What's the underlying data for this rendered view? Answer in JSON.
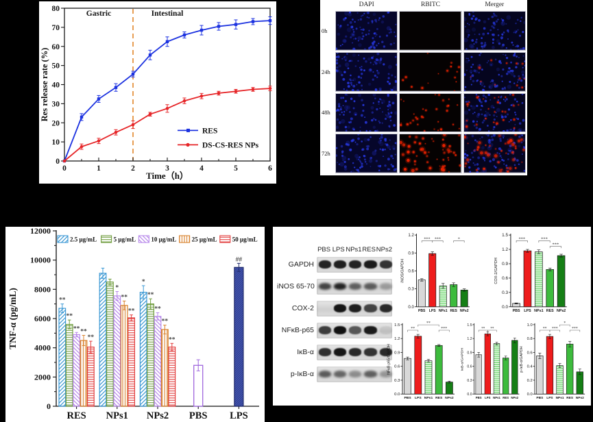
{
  "panels": {
    "microscopy": {
      "column_headers": [
        "DAPI",
        "RBITC",
        "Merger"
      ],
      "row_labels": [
        "0h",
        "24h",
        "48h",
        "72h"
      ],
      "dapi_bg": "#06062a",
      "rbitc_bg": "#050202",
      "merger_bg": "#05051f",
      "dapi_dot_color": "#2a3cf0",
      "rbitc_dot_color": "#e62100",
      "blue_dot_count": 85,
      "red_dot_counts_rbitc": [
        0,
        15,
        32,
        52
      ],
      "red_dot_counts_merger": [
        0,
        12,
        26,
        42
      ]
    },
    "blot": {
      "lane_headers": [
        "PBS",
        "LPS",
        "NPs1",
        "RES",
        "NPs2"
      ],
      "lane_colors": [
        "#d8d8d8",
        "#ee1c1c",
        "#8ce08c",
        "#3dbb3d",
        "#157f15"
      ],
      "rows": [
        {
          "label": "GAPDH",
          "bands": [
            0.88,
            0.9,
            0.88,
            0.92,
            0.8
          ]
        },
        {
          "label": "iNOS 65-70",
          "bands": [
            0.72,
            0.88,
            0.58,
            0.6,
            0.28
          ]
        },
        {
          "label": "COX-2",
          "bands": [
            0.02,
            0.95,
            0.9,
            0.72,
            0.85
          ]
        },
        {
          "label": "NFκB-p65",
          "bands": [
            0.75,
            0.97,
            0.62,
            0.92,
            0.08
          ]
        },
        {
          "label": "IκB-α",
          "bands": [
            0.82,
            0.95,
            0.85,
            0.8,
            0.85
          ]
        },
        {
          "label": "p-IκB-α",
          "bands": [
            0.6,
            0.55,
            0.35,
            0.58,
            0.3
          ]
        }
      ]
    }
  },
  "chart_data": [
    {
      "id": "release",
      "type": "line",
      "title": "",
      "xlabel": "Time（h）",
      "ylabel": "Res release rate (%)",
      "xlim": [
        0,
        6
      ],
      "ylim": [
        0,
        80
      ],
      "xticks": [
        0,
        1,
        2,
        3,
        4,
        5,
        6
      ],
      "yticks": [
        0,
        10,
        20,
        30,
        40,
        50,
        60,
        70,
        80
      ],
      "x": [
        0,
        0.5,
        1,
        1.5,
        2,
        2.5,
        3,
        3.5,
        4,
        4.5,
        5,
        5.5,
        6
      ],
      "series": [
        {
          "name": "RES",
          "color": "#1c32e0",
          "marker": "square",
          "values": [
            0,
            23,
            32.5,
            38.5,
            45.5,
            55.5,
            62.5,
            66,
            68.5,
            70.5,
            71.5,
            73,
            73.5
          ],
          "errors": [
            0,
            1.8,
            1.8,
            2,
            1.5,
            2.5,
            2.5,
            1.6,
            2.5,
            2,
            2.4,
            1.6,
            2
          ]
        },
        {
          "name": "DS-CS-RES NPs",
          "color": "#e62528",
          "marker": "circle",
          "values": [
            0,
            7.5,
            10.5,
            15,
            19,
            24.5,
            27.5,
            31.5,
            34,
            35.5,
            36.5,
            37.5,
            38
          ],
          "errors": [
            0,
            1.4,
            1.4,
            1.4,
            2,
            1,
            2,
            1.5,
            1.4,
            1,
            1,
            1,
            1.2
          ]
        }
      ],
      "vline": {
        "x": 2,
        "color": "#e2862a",
        "style": "dashed"
      },
      "annotations": [
        {
          "text": "Gastric",
          "x": 1.0,
          "y": 76
        },
        {
          "text": "Intestinal",
          "x": 3.0,
          "y": 76
        }
      ],
      "legend_position": "bottom-right"
    },
    {
      "id": "tnf",
      "type": "bar",
      "ylabel": "TNF-α (pg/mL)",
      "ylim": [
        0,
        12000
      ],
      "yticks": [
        0,
        2000,
        4000,
        6000,
        8000,
        10000,
        12000
      ],
      "categories": [
        "RES",
        "NPs1",
        "NPs2",
        "PBS",
        "LPS"
      ],
      "group_categories": [
        "RES",
        "NPs1",
        "NPs2"
      ],
      "series": [
        {
          "name": "2.5 μg/mL",
          "color": "#3b98d4",
          "hatch": "diag",
          "values": [
            6700,
            9100,
            7800
          ],
          "errors": [
            300,
            350,
            450
          ],
          "stars": [
            "**",
            "",
            "*"
          ]
        },
        {
          "name": "5 μg/mL",
          "color": "#6f9c3d",
          "hatch": "hlines",
          "values": [
            5600,
            8500,
            7000
          ],
          "errors": [
            300,
            200,
            350
          ],
          "stars": [
            "**",
            "",
            "**"
          ]
        },
        {
          "name": "10 μg/mL",
          "color": "#b788ea",
          "hatch": "backdiag",
          "values": [
            4900,
            7550,
            6150
          ],
          "errors": [
            150,
            300,
            250
          ],
          "stars": [
            "**",
            "*",
            "**"
          ]
        },
        {
          "name": "25 μg/mL",
          "color": "#d8812c",
          "hatch": "vlines",
          "values": [
            4500,
            6900,
            5250
          ],
          "errors": [
            350,
            300,
            300
          ],
          "stars": [
            "**",
            "**",
            "**"
          ]
        },
        {
          "name": "50 μg/mL",
          "color": "#e23d3d",
          "hatch": "hlines",
          "values": [
            4050,
            6050,
            4050
          ],
          "errors": [
            400,
            200,
            250
          ],
          "stars": [
            "**",
            "**",
            "**"
          ]
        }
      ],
      "single_bars": [
        {
          "category": "PBS",
          "value": 2800,
          "error": 380,
          "edge": "#9f66dd",
          "fill": "#ffffff",
          "hatch": "none",
          "star": ""
        },
        {
          "category": "LPS",
          "value": 9500,
          "error": 280,
          "edge": "#232d6e",
          "fill": "#2f3f94",
          "hatch": "diag-dense",
          "star": "##"
        }
      ]
    },
    {
      "id": "inos",
      "type": "bar",
      "ylabel": "iNOS/GAPDH",
      "ylim": [
        0,
        1.2
      ],
      "ytick_step": 0.3,
      "categories": [
        "PBS",
        "LPS",
        "NPs1",
        "RES",
        "NPs2"
      ],
      "values": [
        0.45,
        0.89,
        0.35,
        0.37,
        0.28
      ],
      "errors": [
        0.02,
        0.03,
        0.04,
        0.03,
        0.02
      ],
      "brackets": [
        {
          "from": 0,
          "to": 1,
          "label": "***",
          "level": 0
        },
        {
          "from": 1,
          "to": 2,
          "label": "***",
          "level": 0
        },
        {
          "from": 3,
          "to": 4,
          "label": "*",
          "level": 0
        }
      ]
    },
    {
      "id": "cox2",
      "type": "bar",
      "ylabel": "COX-2/GAPDH",
      "ylim": [
        0,
        1.5
      ],
      "ytick_step": 0.3,
      "categories": [
        "PBS",
        "LPS",
        "NPs1",
        "RES",
        "NPs2"
      ],
      "values": [
        0.07,
        1.17,
        1.15,
        0.78,
        1.07
      ],
      "errors": [
        0.01,
        0.03,
        0.04,
        0.03,
        0.03
      ],
      "brackets": [
        {
          "from": 0,
          "to": 1,
          "label": "***",
          "level": 0
        },
        {
          "from": 2,
          "to": 3,
          "label": "***",
          "level": 0
        },
        {
          "from": 3,
          "to": 4,
          "label": "***",
          "level": -1
        }
      ]
    },
    {
      "id": "nfkb",
      "type": "bar",
      "ylabel": "NFκB p65/GAPDH",
      "ylim": [
        0,
        1.5
      ],
      "ytick_step": 0.3,
      "categories": [
        "PBS",
        "LPS",
        "NPs1",
        "RES",
        "NPs2"
      ],
      "values": [
        0.77,
        1.25,
        0.72,
        1.05,
        0.26
      ],
      "errors": [
        0.03,
        0.04,
        0.03,
        0.02,
        0.02
      ],
      "brackets": [
        {
          "from": 0,
          "to": 1,
          "label": "**",
          "level": 0
        },
        {
          "from": 1,
          "to": 3,
          "label": "**",
          "level": 1
        },
        {
          "from": 3,
          "to": 4,
          "label": "***",
          "level": 0
        }
      ]
    },
    {
      "id": "ikb",
      "type": "bar",
      "ylabel": "IκB-α/GAPDH",
      "ylim": [
        0,
        1.5
      ],
      "ytick_step": 0.3,
      "categories": [
        "PBS",
        "LPS",
        "NPs1",
        "RES",
        "NPs2"
      ],
      "values": [
        0.85,
        1.3,
        1.09,
        0.78,
        1.16
      ],
      "errors": [
        0.05,
        0.04,
        0.03,
        0.04,
        0.05
      ],
      "brackets": [
        {
          "from": 0,
          "to": 1,
          "label": "**",
          "level": 0
        },
        {
          "from": 1,
          "to": 2,
          "label": "**",
          "level": 0
        }
      ]
    },
    {
      "id": "pikb",
      "type": "bar",
      "ylabel": "p-IκB-α/GAPDH",
      "ylim": [
        0,
        1.0
      ],
      "ytick_step": 0.2,
      "categories": [
        "PBS",
        "LPS",
        "NPs1",
        "RES",
        "NPs2"
      ],
      "values": [
        0.55,
        0.83,
        0.41,
        0.72,
        0.32
      ],
      "errors": [
        0.04,
        0.03,
        0.03,
        0.04,
        0.04
      ],
      "brackets": [
        {
          "from": 0,
          "to": 1,
          "label": "**",
          "level": 0
        },
        {
          "from": 1,
          "to": 2,
          "label": "***",
          "level": 0
        },
        {
          "from": 2,
          "to": 3,
          "label": "*",
          "level": 1
        },
        {
          "from": 3,
          "to": 4,
          "label": "***",
          "level": 0
        }
      ]
    }
  ]
}
